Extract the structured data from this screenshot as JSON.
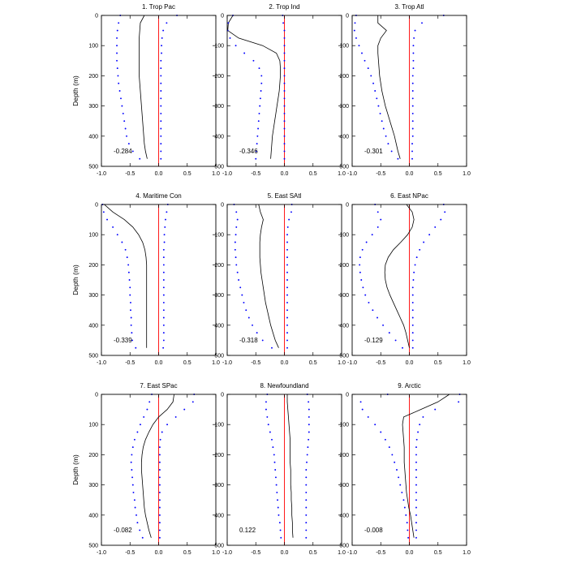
{
  "chart_data": {
    "type": "line",
    "xlim": [
      -1.0,
      1.0
    ],
    "ylim": [
      0,
      500
    ],
    "y_inverted": true,
    "ylabel": "Depth (m)",
    "xticks": [
      "-1.0",
      "-0.5",
      "0.0",
      "0.5",
      "1.0"
    ],
    "yticks": [
      "0",
      "100",
      "200",
      "300",
      "400",
      "500"
    ],
    "series_styles": [
      {
        "key": "mean",
        "style": "solid",
        "color": "#000000"
      },
      {
        "key": "upper",
        "style": "dotted",
        "color": "#0000ff"
      },
      {
        "key": "lower",
        "style": "dotted",
        "color": "#0000ff"
      }
    ],
    "reference_line": {
      "x": 0,
      "color": "#ff0000"
    },
    "panels": [
      {
        "title": "1. Trop Pac",
        "value_label": "-0.284",
        "depths": [
          0,
          25,
          50,
          75,
          100,
          125,
          150,
          175,
          200,
          225,
          250,
          275,
          300,
          325,
          350,
          375,
          400,
          425,
          450,
          475
        ],
        "mean": [
          -0.25,
          -0.32,
          -0.33,
          -0.34,
          -0.34,
          -0.34,
          -0.34,
          -0.34,
          -0.34,
          -0.33,
          -0.32,
          -0.31,
          -0.3,
          -0.29,
          -0.28,
          -0.27,
          -0.26,
          -0.25,
          -0.23,
          -0.2
        ],
        "upper": [
          0.32,
          0.14,
          0.08,
          0.06,
          0.05,
          0.05,
          0.04,
          0.04,
          0.04,
          0.04,
          0.04,
          0.04,
          0.04,
          0.04,
          0.04,
          0.04,
          0.04,
          0.04,
          0.04,
          0.04
        ],
        "lower": [
          -0.67,
          -0.7,
          -0.72,
          -0.73,
          -0.73,
          -0.73,
          -0.73,
          -0.72,
          -0.71,
          -0.7,
          -0.68,
          -0.66,
          -0.64,
          -0.62,
          -0.6,
          -0.58,
          -0.56,
          -0.52,
          -0.45,
          -0.33
        ]
      },
      {
        "title": "2. Trop Ind",
        "value_label": "-0.346",
        "depths": [
          0,
          25,
          50,
          75,
          100,
          125,
          150,
          175,
          200,
          225,
          250,
          275,
          300,
          325,
          350,
          375,
          400,
          425,
          450,
          475
        ],
        "mean": [
          -0.9,
          -0.98,
          -0.99,
          -0.8,
          -0.38,
          -0.14,
          -0.08,
          -0.07,
          -0.07,
          -0.08,
          -0.09,
          -0.11,
          -0.13,
          -0.15,
          -0.17,
          -0.19,
          -0.21,
          -0.22,
          -0.23,
          -0.24
        ],
        "upper": [
          -0.03,
          -0.02,
          0,
          0,
          0,
          0,
          0,
          0,
          0,
          0,
          0,
          0,
          0,
          0,
          0,
          0,
          0,
          0,
          0,
          0
        ],
        "lower": [
          -0.9,
          -0.98,
          -0.99,
          -0.95,
          -0.85,
          -0.7,
          -0.54,
          -0.44,
          -0.4,
          -0.4,
          -0.41,
          -0.42,
          -0.43,
          -0.44,
          -0.45,
          -0.46,
          -0.47,
          -0.48,
          -0.49,
          -0.5
        ]
      },
      {
        "title": "3. Trop Atl",
        "value_label": "-0.301",
        "depths": [
          0,
          25,
          50,
          75,
          100,
          125,
          150,
          175,
          200,
          225,
          250,
          275,
          300,
          325,
          350,
          375,
          400,
          425,
          450,
          475
        ],
        "mean": [
          -0.55,
          -0.55,
          -0.4,
          -0.5,
          -0.55,
          -0.55,
          -0.54,
          -0.53,
          -0.52,
          -0.5,
          -0.48,
          -0.45,
          -0.42,
          -0.38,
          -0.34,
          -0.3,
          -0.26,
          -0.23,
          -0.2,
          -0.16
        ],
        "upper": [
          0.6,
          0.22,
          0.1,
          0.08,
          0.07,
          0.07,
          0.07,
          0.07,
          0.06,
          0.06,
          0.06,
          0.06,
          0.06,
          0.06,
          0.06,
          0.06,
          0.06,
          0.05,
          0.05,
          0.05
        ],
        "lower": [
          -0.93,
          -0.95,
          -0.96,
          -0.93,
          -0.88,
          -0.83,
          -0.78,
          -0.72,
          -0.67,
          -0.63,
          -0.6,
          -0.57,
          -0.54,
          -0.51,
          -0.48,
          -0.45,
          -0.41,
          -0.37,
          -0.31,
          -0.2
        ]
      },
      {
        "title": "4. Maritime Con",
        "value_label": "-0.339",
        "depths": [
          0,
          25,
          50,
          75,
          100,
          125,
          150,
          175,
          200,
          225,
          250,
          275,
          300,
          325,
          350,
          375,
          400,
          425,
          450,
          475
        ],
        "mean": [
          -0.95,
          -0.8,
          -0.6,
          -0.45,
          -0.35,
          -0.28,
          -0.24,
          -0.22,
          -0.21,
          -0.21,
          -0.21,
          -0.21,
          -0.21,
          -0.21,
          -0.21,
          -0.21,
          -0.21,
          -0.21,
          -0.21,
          -0.21
        ],
        "upper": [
          0.16,
          0.14,
          0.12,
          0.11,
          0.1,
          0.1,
          0.09,
          0.09,
          0.09,
          0.09,
          0.09,
          0.09,
          0.09,
          0.09,
          0.09,
          0.09,
          0.09,
          0.09,
          0.09,
          0.08
        ],
        "lower": [
          -0.98,
          -0.96,
          -0.9,
          -0.8,
          -0.72,
          -0.64,
          -0.58,
          -0.55,
          -0.53,
          -0.52,
          -0.51,
          -0.5,
          -0.5,
          -0.49,
          -0.49,
          -0.48,
          -0.48,
          -0.47,
          -0.46,
          -0.4
        ]
      },
      {
        "title": "5. East SAtl",
        "value_label": "-0.318",
        "depths": [
          0,
          25,
          50,
          75,
          100,
          125,
          150,
          175,
          200,
          225,
          250,
          275,
          300,
          325,
          350,
          375,
          400,
          425,
          450,
          475
        ],
        "mean": [
          -0.45,
          -0.42,
          -0.37,
          -0.4,
          -0.42,
          -0.43,
          -0.43,
          -0.43,
          -0.42,
          -0.41,
          -0.39,
          -0.37,
          -0.35,
          -0.33,
          -0.3,
          -0.27,
          -0.24,
          -0.2,
          -0.16,
          -0.1
        ],
        "upper": [
          0.13,
          0.12,
          0.08,
          0.06,
          0.05,
          0.05,
          0.05,
          0.05,
          0.05,
          0.05,
          0.05,
          0.05,
          0.05,
          0.05,
          0.05,
          0.05,
          0.05,
          0.05,
          0.05,
          0.05
        ],
        "lower": [
          -0.88,
          -0.84,
          -0.82,
          -0.84,
          -0.85,
          -0.86,
          -0.86,
          -0.85,
          -0.84,
          -0.82,
          -0.8,
          -0.77,
          -0.74,
          -0.71,
          -0.67,
          -0.62,
          -0.56,
          -0.48,
          -0.38,
          -0.22
        ]
      },
      {
        "title": "6. East NPac",
        "value_label": "-0.129",
        "depths": [
          0,
          25,
          50,
          75,
          100,
          125,
          150,
          175,
          200,
          225,
          250,
          275,
          300,
          325,
          350,
          375,
          400,
          425,
          450,
          475
        ],
        "mean": [
          -0.05,
          0.05,
          0.08,
          0.05,
          -0.03,
          -0.15,
          -0.28,
          -0.37,
          -0.42,
          -0.43,
          -0.42,
          -0.39,
          -0.34,
          -0.28,
          -0.22,
          -0.16,
          -0.1,
          -0.06,
          -0.03,
          0.0
        ],
        "upper": [
          0.6,
          0.62,
          0.55,
          0.45,
          0.35,
          0.25,
          0.18,
          0.13,
          0.1,
          0.08,
          0.07,
          0.06,
          0.06,
          0.06,
          0.06,
          0.06,
          0.06,
          0.06,
          0.06,
          0.06
        ],
        "lower": [
          -0.6,
          -0.55,
          -0.5,
          -0.55,
          -0.65,
          -0.75,
          -0.82,
          -0.86,
          -0.87,
          -0.86,
          -0.84,
          -0.81,
          -0.77,
          -0.71,
          -0.64,
          -0.56,
          -0.46,
          -0.35,
          -0.24,
          -0.12
        ]
      },
      {
        "title": "7. East SPac",
        "value_label": "-0.082",
        "depths": [
          0,
          25,
          50,
          75,
          100,
          125,
          150,
          175,
          200,
          225,
          250,
          275,
          300,
          325,
          350,
          375,
          400,
          425,
          450,
          475
        ],
        "mean": [
          0.27,
          0.25,
          0.15,
          0.0,
          -0.1,
          -0.17,
          -0.23,
          -0.27,
          -0.29,
          -0.3,
          -0.3,
          -0.29,
          -0.28,
          -0.27,
          -0.26,
          -0.25,
          -0.23,
          -0.2,
          -0.17,
          -0.13
        ],
        "upper": [
          0.62,
          0.6,
          0.45,
          0.3,
          0.15,
          0.06,
          0.03,
          0.02,
          0.02,
          0.02,
          0.02,
          0.02,
          0.02,
          0.02,
          0.02,
          0.02,
          0.02,
          0.02,
          0.02,
          0.02
        ],
        "lower": [
          -0.12,
          -0.16,
          -0.2,
          -0.26,
          -0.32,
          -0.37,
          -0.42,
          -0.45,
          -0.47,
          -0.48,
          -0.47,
          -0.46,
          -0.45,
          -0.44,
          -0.42,
          -0.41,
          -0.39,
          -0.37,
          -0.33,
          -0.28
        ]
      },
      {
        "title": "8. Newfoundland",
        "value_label": "0.122",
        "depths": [
          0,
          25,
          50,
          75,
          100,
          125,
          150,
          175,
          200,
          225,
          250,
          275,
          300,
          325,
          350,
          375,
          400,
          425,
          450,
          475
        ],
        "mean": [
          0.05,
          0.05,
          0.06,
          0.07,
          0.08,
          0.09,
          0.1,
          0.1,
          0.1,
          0.1,
          0.11,
          0.11,
          0.11,
          0.12,
          0.12,
          0.13,
          0.13,
          0.14,
          0.14,
          0.15
        ],
        "upper": [
          0.4,
          0.42,
          0.43,
          0.43,
          0.43,
          0.43,
          0.42,
          0.41,
          0.4,
          0.39,
          0.38,
          0.38,
          0.38,
          0.38,
          0.38,
          0.38,
          0.38,
          0.38,
          0.38,
          0.38
        ],
        "lower": [
          -0.3,
          -0.32,
          -0.32,
          -0.3,
          -0.28,
          -0.25,
          -0.22,
          -0.2,
          -0.18,
          -0.17,
          -0.16,
          -0.15,
          -0.14,
          -0.13,
          -0.12,
          -0.11,
          -0.1,
          -0.08,
          -0.07,
          -0.06
        ]
      },
      {
        "title": "9. Arctic",
        "value_label": "-0.008",
        "depths": [
          0,
          25,
          50,
          75,
          100,
          125,
          150,
          175,
          200,
          225,
          250,
          275,
          300,
          325,
          350,
          375,
          400,
          425,
          450,
          475
        ],
        "mean": [
          0.7,
          0.5,
          0.2,
          -0.1,
          -0.12,
          -0.11,
          -0.1,
          -0.09,
          -0.09,
          -0.09,
          -0.08,
          -0.07,
          -0.06,
          -0.05,
          -0.03,
          -0.01,
          0.02,
          0.04,
          0.06,
          0.08
        ],
        "upper": [
          0.88,
          0.86,
          0.45,
          0.24,
          0.18,
          0.15,
          0.13,
          0.12,
          0.12,
          0.12,
          0.12,
          0.12,
          0.12,
          0.12,
          0.12,
          0.12,
          0.12,
          0.12,
          0.12,
          0.12
        ],
        "lower": [
          -0.38,
          -0.85,
          -0.82,
          -0.72,
          -0.6,
          -0.5,
          -0.42,
          -0.35,
          -0.3,
          -0.26,
          -0.22,
          -0.19,
          -0.16,
          -0.13,
          -0.1,
          -0.08,
          -0.06,
          -0.04,
          -0.03,
          -0.02
        ]
      }
    ]
  }
}
